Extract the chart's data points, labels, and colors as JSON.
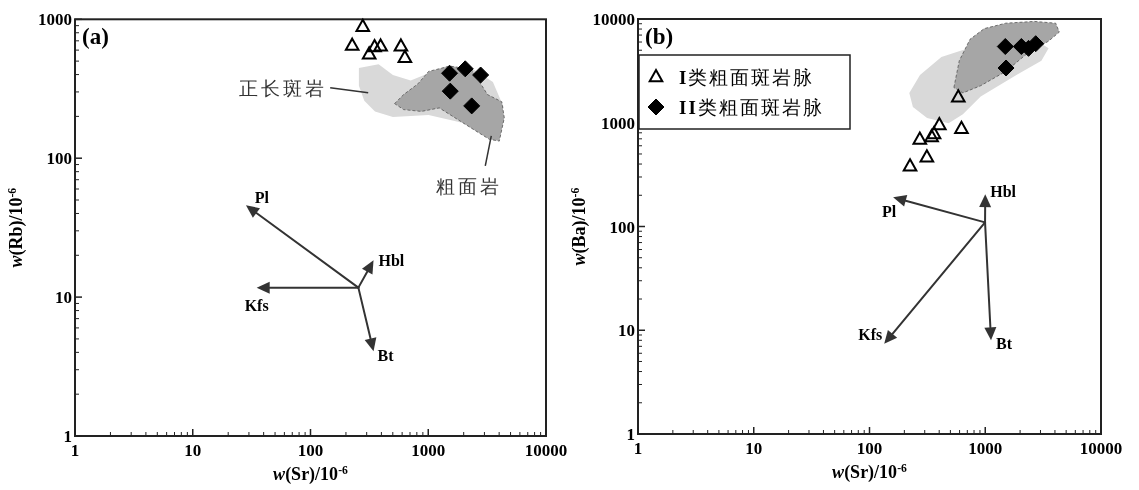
{
  "chart_data": [
    {
      "type": "scatter",
      "title": "(a)",
      "xlabel": "*w*(Sr)/10$^{-6}$",
      "ylabel": "*w*(Rb)/10$^{-6}$",
      "log": "xy",
      "xlim": [
        1,
        10000
      ],
      "ylim": [
        1,
        1000
      ],
      "xticks": [
        1,
        10,
        100,
        1000,
        10000
      ],
      "yticks": [
        1,
        10,
        100,
        1000
      ],
      "legend": false,
      "series": [
        {
          "color": "#000000",
          "marker": "triangle",
          "x": [
            226,
            278,
            315,
            350,
            394,
            586,
            633
          ],
          "values": [
            646,
            883,
            560,
            631,
            638,
            638,
            528
          ]
        },
        {
          "color": "#000000",
          "marker": "diamond",
          "x": [
            1517,
            2061,
            2786,
            1538,
            2339
          ],
          "values": [
            409,
            440,
            397,
            304,
            238
          ]
        }
      ],
      "annotations": [
        "Pl",
        "Hbl",
        "Kfs",
        "Bt",
        "正长斑岩",
        "粗面岩"
      ]
    },
    {
      "type": "scatter",
      "title": "(b)",
      "xlabel": "*w*(Sr)/10$^{-6}$",
      "ylabel": "*w*(Ba)/10$^{-6}$",
      "log": "xy",
      "xlim": [
        1,
        10000
      ],
      "ylim": [
        1,
        10000
      ],
      "xticks": [
        1,
        10,
        100,
        1000,
        10000
      ],
      "yticks": [
        1,
        10,
        100,
        1000,
        10000
      ],
      "legend": "top left",
      "series": [
        {
          "name": "**I**类粗面斑岩脉",
          "color": "#000000",
          "marker": "triangle",
          "x": [
            224,
            272,
            313,
            344,
            361,
            401,
            585,
            623
          ],
          "values": [
            381,
            690,
            465,
            730,
            778,
            949,
            1762,
            875
          ]
        },
        {
          "name": "**II**类粗面斑岩脉",
          "color": "#000000",
          "marker": "diamond",
          "x": [
            1490,
            1512,
            2051,
            2366,
            2729
          ],
          "values": [
            5430,
            3370,
            5430,
            5212,
            5780
          ]
        }
      ],
      "annotations": [
        "Pl",
        "Hbl",
        "Kfs",
        "Bt"
      ]
    }
  ]
}
